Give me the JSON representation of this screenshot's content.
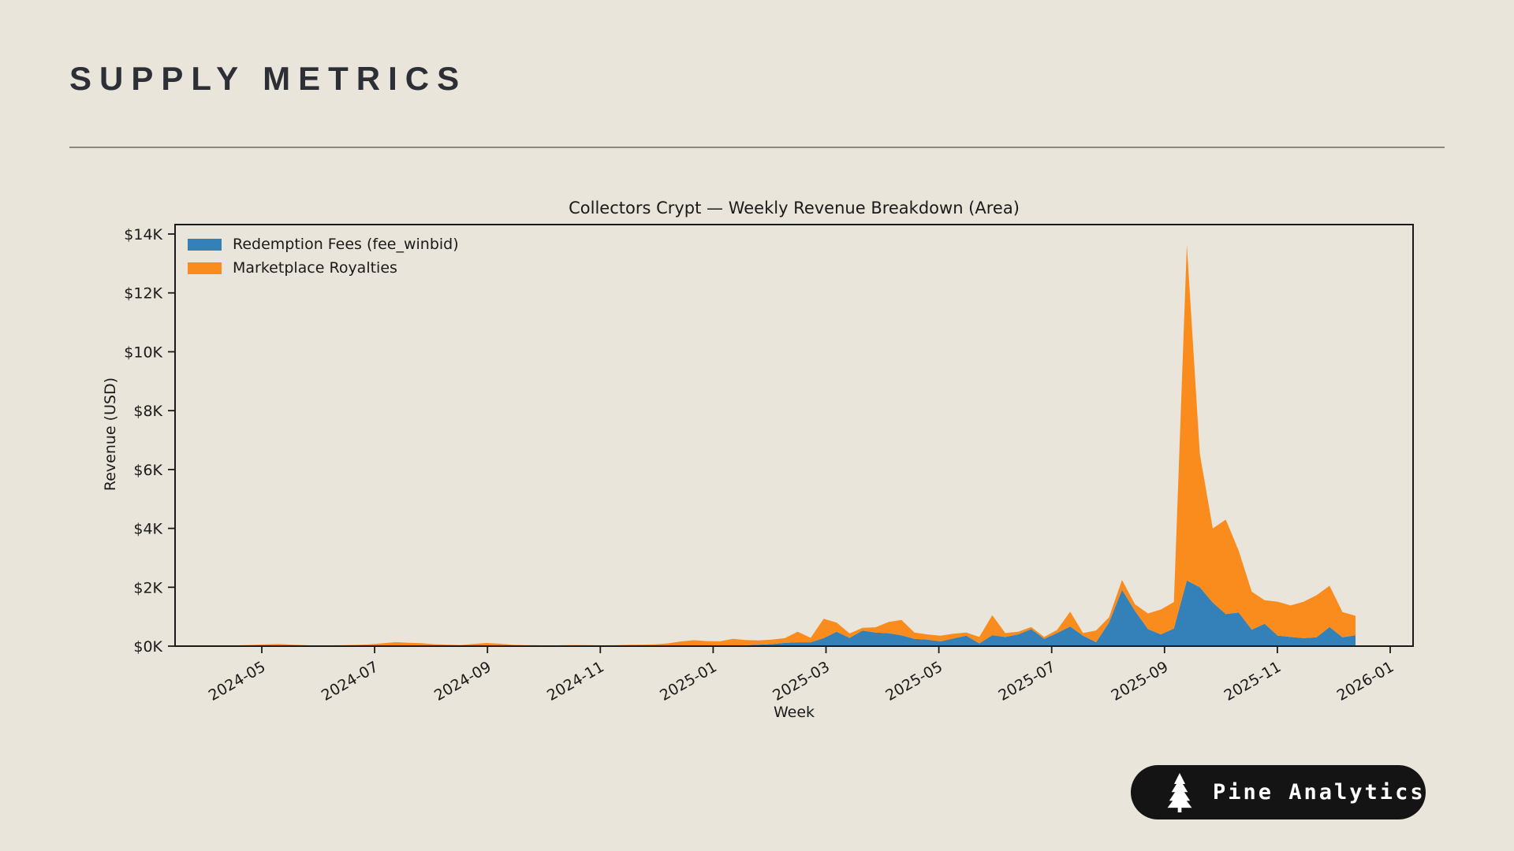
{
  "page": {
    "background": "#e9e5da",
    "header": {
      "title": "SUPPLY METRICS"
    },
    "badge": {
      "label": "Pine Analytics",
      "icon": "pine-tree-icon",
      "bg": "#141414",
      "fg": "#ffffff"
    }
  },
  "chart_data": {
    "type": "area",
    "stacked": true,
    "title": "Collectors Crypt — Weekly Revenue Breakdown (Area)",
    "xlabel": "Week",
    "ylabel": "Revenue (USD)",
    "ylim": [
      0,
      14350
    ],
    "grid": false,
    "legend_position": "upper left",
    "y_tick_labels": [
      "$0K",
      "$2K",
      "$4K",
      "$6K",
      "$8K",
      "$10K",
      "$12K",
      "$14K"
    ],
    "x_tick_labels": [
      "2024-05",
      "2024-07",
      "2024-09",
      "2024-11",
      "2025-01",
      "2025-03",
      "2025-05",
      "2025-07",
      "2025-09",
      "2025-11",
      "2026-01"
    ],
    "weeks": [
      "2024-03-16",
      "2024-03-23",
      "2024-03-30",
      "2024-04-06",
      "2024-04-13",
      "2024-04-20",
      "2024-04-27",
      "2024-05-04",
      "2024-05-11",
      "2024-05-18",
      "2024-05-25",
      "2024-06-01",
      "2024-06-08",
      "2024-06-15",
      "2024-06-22",
      "2024-06-29",
      "2024-07-06",
      "2024-07-13",
      "2024-07-20",
      "2024-07-27",
      "2024-08-03",
      "2024-08-10",
      "2024-08-17",
      "2024-08-24",
      "2024-08-31",
      "2024-09-07",
      "2024-09-14",
      "2024-09-21",
      "2024-09-28",
      "2024-10-05",
      "2024-10-12",
      "2024-10-19",
      "2024-10-26",
      "2024-11-02",
      "2024-11-09",
      "2024-11-16",
      "2024-11-23",
      "2024-11-30",
      "2024-12-07",
      "2024-12-14",
      "2024-12-21",
      "2024-12-28",
      "2025-01-04",
      "2025-01-11",
      "2025-01-18",
      "2025-01-25",
      "2025-02-01",
      "2025-02-08",
      "2025-02-15",
      "2025-02-22",
      "2025-03-01",
      "2025-03-08",
      "2025-03-15",
      "2025-03-22",
      "2025-03-29",
      "2025-04-05",
      "2025-04-12",
      "2025-04-19",
      "2025-04-26",
      "2025-05-03",
      "2025-05-10",
      "2025-05-17",
      "2025-05-24",
      "2025-05-31",
      "2025-06-07",
      "2025-06-14",
      "2025-06-21",
      "2025-06-28",
      "2025-07-05",
      "2025-07-12",
      "2025-07-19",
      "2025-07-26",
      "2025-08-02",
      "2025-08-09",
      "2025-08-16",
      "2025-08-23",
      "2025-08-30",
      "2025-09-06",
      "2025-09-13",
      "2025-09-20",
      "2025-09-27",
      "2025-10-04",
      "2025-10-11",
      "2025-10-18",
      "2025-10-25",
      "2025-11-01",
      "2025-11-08",
      "2025-11-15",
      "2025-11-22",
      "2025-11-29",
      "2025-12-06",
      "2025-12-13"
    ],
    "series": [
      {
        "name": "Redemption Fees (fee_winbid)",
        "color": "#3381b8",
        "values": [
          0,
          2,
          0,
          3,
          1,
          2,
          4,
          3,
          5,
          2,
          4,
          1,
          3,
          2,
          5,
          3,
          6,
          8,
          4,
          6,
          3,
          5,
          2,
          6,
          8,
          4,
          3,
          2,
          4,
          1,
          3,
          2,
          4,
          2,
          3,
          5,
          3,
          6,
          8,
          10,
          15,
          12,
          18,
          25,
          30,
          45,
          70,
          110,
          130,
          130,
          270,
          490,
          280,
          530,
          460,
          440,
          370,
          250,
          220,
          160,
          260,
          355,
          90,
          373,
          311,
          400,
          578,
          249,
          444,
          667,
          355,
          133,
          800,
          1911,
          1200,
          578,
          400,
          600,
          2230,
          2000,
          1480,
          1090,
          1140,
          560,
          760,
          360,
          310,
          270,
          300,
          650,
          300,
          370
        ]
      },
      {
        "name": "Marketplace Royalties",
        "color": "#fa8c1d",
        "values": [
          8,
          14,
          22,
          18,
          12,
          28,
          40,
          55,
          70,
          48,
          30,
          18,
          24,
          30,
          38,
          55,
          90,
          125,
          110,
          95,
          60,
          45,
          35,
          70,
          100,
          80,
          45,
          30,
          25,
          20,
          28,
          35,
          30,
          24,
          32,
          40,
          48,
          55,
          85,
          150,
          185,
          160,
          145,
          225,
          175,
          150,
          150,
          160,
          360,
          150,
          660,
          310,
          150,
          90,
          180,
          380,
          520,
          210,
          180,
          195,
          160,
          107,
          221,
          675,
          133,
          89,
          72,
          62,
          107,
          506,
          89,
          400,
          177,
          338,
          222,
          533,
          844,
          900,
          11400,
          4530,
          2520,
          3210,
          2100,
          1290,
          800,
          1150,
          1070,
          1240,
          1430,
          1400,
          860,
          660
        ]
      }
    ]
  }
}
